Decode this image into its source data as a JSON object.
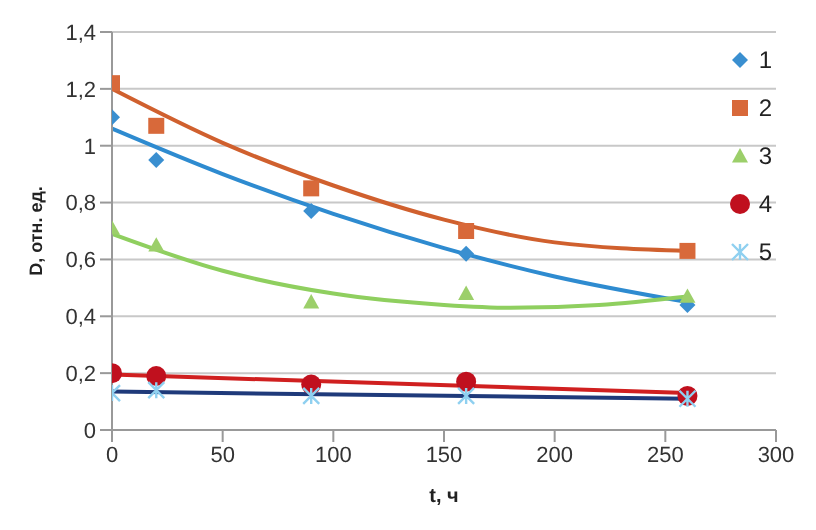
{
  "chart_data": {
    "type": "scatter",
    "xlabel": "t, ч",
    "ylabel": "D, отн. ед.",
    "xlim": [
      0,
      300
    ],
    "xticks": [
      0,
      50,
      100,
      150,
      200,
      250,
      300
    ],
    "ylim": [
      0,
      1.4
    ],
    "yticks": [
      0,
      {
        "value": 0.2,
        "label": "0,2"
      },
      {
        "value": 0.4,
        "label": "0,4"
      },
      {
        "value": 0.6,
        "label": "0,6"
      },
      {
        "value": 0.8,
        "label": "0,8"
      },
      1,
      {
        "value": 1.2,
        "label": "1,2"
      },
      {
        "value": 1.4,
        "label": "1,4"
      }
    ],
    "grid": "y",
    "legend": "top right",
    "series": [
      {
        "name": "1",
        "marker": "diamond",
        "color": "#3a8fd0",
        "x": [
          0,
          20,
          90,
          160,
          260
        ],
        "values": [
          1.1,
          0.95,
          0.77,
          0.62,
          0.44
        ]
      },
      {
        "name": "2",
        "marker": "square",
        "color": "#d8693a",
        "x": [
          0,
          20,
          90,
          160,
          260
        ],
        "values": [
          1.22,
          1.07,
          0.85,
          0.7,
          0.63
        ]
      },
      {
        "name": "3",
        "marker": "triangle",
        "color": "#9ccf6a",
        "x": [
          0,
          20,
          90,
          160,
          260
        ],
        "values": [
          0.71,
          0.65,
          0.45,
          0.48,
          0.47
        ]
      },
      {
        "name": "4",
        "marker": "circle",
        "color": "#c0101e",
        "x": [
          0,
          20,
          90,
          160,
          260
        ],
        "values": [
          0.2,
          0.19,
          0.16,
          0.17,
          0.12
        ]
      },
      {
        "name": "5",
        "marker": "cross",
        "color": "#8fd0f0",
        "x": [
          0,
          20,
          90,
          160,
          260
        ],
        "values": [
          0.13,
          0.14,
          0.12,
          0.12,
          0.11
        ]
      },
      {
        "type": "line",
        "marker": "none",
        "color": "#2e8bd0",
        "x": [
          0,
          50,
          100,
          150,
          200,
          260
        ],
        "values": [
          1.06,
          0.9,
          0.76,
          0.64,
          0.54,
          0.45
        ]
      },
      {
        "type": "line",
        "marker": "none",
        "color": "#d0602e",
        "x": [
          0,
          50,
          100,
          150,
          200,
          260
        ],
        "values": [
          1.2,
          1.01,
          0.86,
          0.74,
          0.66,
          0.63
        ]
      },
      {
        "type": "line",
        "marker": "none",
        "color": "#8fcf5f",
        "x": [
          0,
          50,
          100,
          150,
          180,
          220,
          260
        ],
        "values": [
          0.69,
          0.56,
          0.48,
          0.44,
          0.43,
          0.44,
          0.47
        ]
      },
      {
        "type": "line",
        "marker": "none",
        "color": "#d02020",
        "x": [
          0,
          260
        ],
        "values": [
          0.195,
          0.13
        ]
      },
      {
        "type": "line",
        "marker": "none",
        "color": "#1f3a7a",
        "x": [
          0,
          260
        ],
        "values": [
          0.135,
          0.11
        ]
      }
    ]
  }
}
